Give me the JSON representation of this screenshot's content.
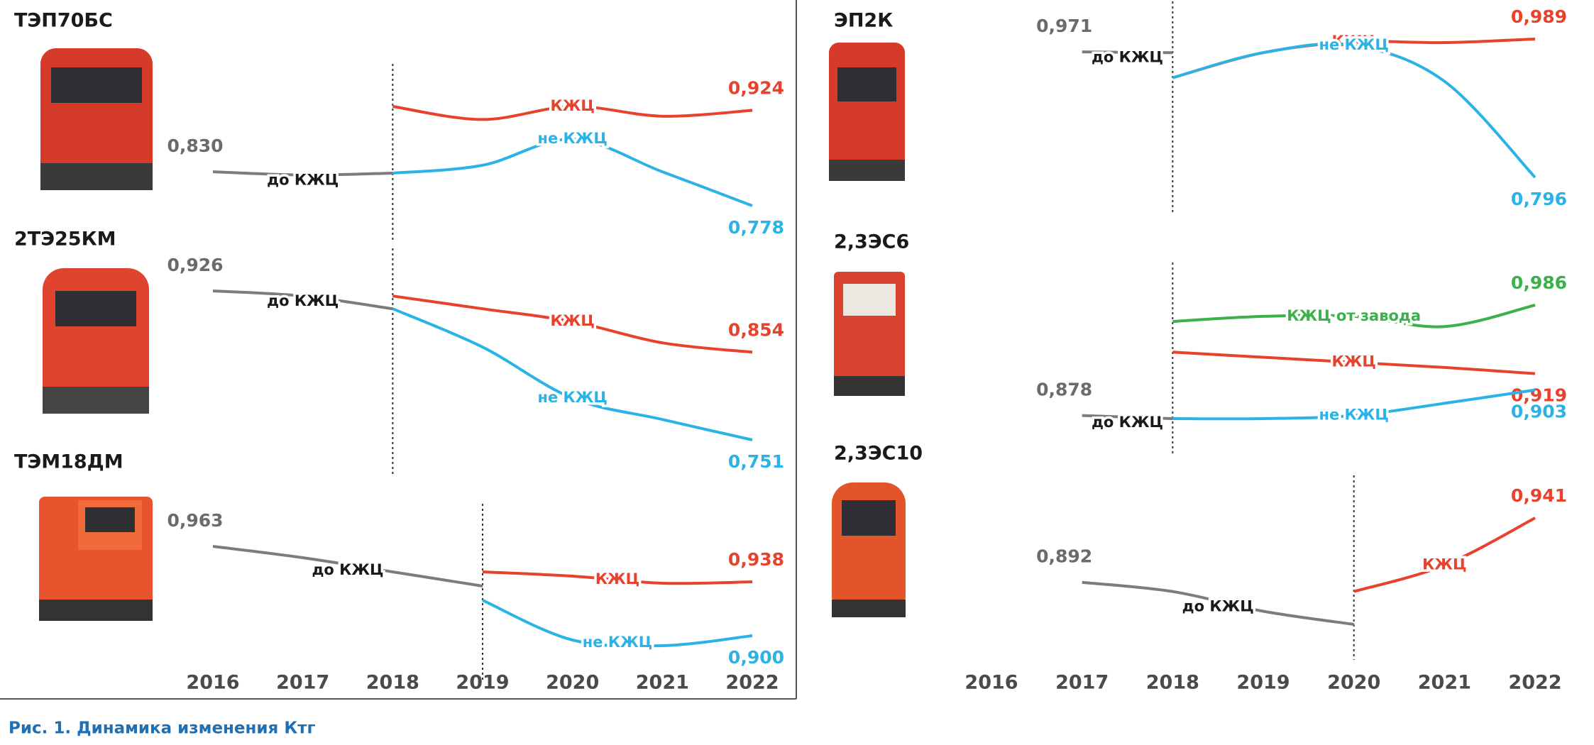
{
  "caption": "Рис. 1. Динамика изменения Ктг",
  "chart_data": [
    {
      "type": "line",
      "x": [
        2016,
        2017,
        2018,
        2019,
        2020,
        2021,
        2022
      ],
      "panels": [
        {
          "title": "ТЭП70БС",
          "series": [
            {
              "name": "до КЖЦ",
              "color": "#7d7a80",
              "values": [
                0.83,
                0.825,
                0.828,
                null,
                null,
                null,
                null
              ],
              "value_labels": [
                "0,830",
                null,
                null,
                null,
                null,
                null,
                null
              ]
            },
            {
              "name": "КЖЦ",
              "color": "#e8412c",
              "values": [
                null,
                null,
                0.93,
                0.91,
                0.93,
                0.915,
                0.924
              ],
              "value_labels": [
                null,
                null,
                null,
                null,
                null,
                null,
                "0,924"
              ]
            },
            {
              "name": "не КЖЦ",
              "color": "#2bb3e6",
              "values": [
                null,
                null,
                0.828,
                0.84,
                0.88,
                0.83,
                0.778
              ],
              "value_labels": [
                null,
                null,
                null,
                null,
                null,
                null,
                "0,778"
              ]
            }
          ]
        },
        {
          "title": "2ТЭ25КМ",
          "series": [
            {
              "name": "до КЖЦ",
              "color": "#7d7a80",
              "values": [
                0.926,
                0.92,
                0.905,
                null,
                null,
                null,
                null
              ],
              "value_labels": [
                "0,926",
                null,
                null,
                null,
                null,
                null,
                null
              ]
            },
            {
              "name": "КЖЦ",
              "color": "#e8412c",
              "values": [
                null,
                null,
                0.92,
                0.905,
                0.89,
                0.865,
                0.854
              ],
              "value_labels": [
                null,
                null,
                null,
                null,
                null,
                null,
                "0,854"
              ]
            },
            {
              "name": "не КЖЦ",
              "color": "#2bb3e6",
              "values": [
                null,
                null,
                0.905,
                0.86,
                0.8,
                0.775,
                0.751
              ],
              "value_labels": [
                null,
                null,
                null,
                null,
                null,
                null,
                "0,751"
              ]
            }
          ]
        },
        {
          "title": "ТЭМ18ДМ",
          "series": [
            {
              "name": "до КЖЦ",
              "color": "#7d7a80",
              "values": [
                0.963,
                0.955,
                0.945,
                0.935,
                null,
                null,
                null
              ],
              "value_labels": [
                "0,963",
                null,
                null,
                null,
                null,
                null,
                null
              ]
            },
            {
              "name": "КЖЦ",
              "color": "#e8412c",
              "values": [
                null,
                null,
                null,
                0.945,
                0.942,
                0.937,
                0.938
              ],
              "value_labels": [
                null,
                null,
                null,
                null,
                null,
                null,
                "0,938"
              ]
            },
            {
              "name": "не КЖЦ",
              "color": "#2bb3e6",
              "values": [
                null,
                null,
                null,
                0.925,
                0.897,
                0.893,
                0.9
              ],
              "value_labels": [
                null,
                null,
                null,
                null,
                null,
                null,
                "0,900"
              ]
            }
          ]
        }
      ]
    },
    {
      "type": "line",
      "x": [
        2016,
        2017,
        2018,
        2019,
        2020,
        2021,
        2022
      ],
      "panels": [
        {
          "title": "ЭП2К",
          "series": [
            {
              "name": "до КЖЦ",
              "color": "#7d7a80",
              "values": [
                null,
                0.971,
                0.97,
                null,
                null,
                null,
                null
              ],
              "value_labels": [
                null,
                "0,971",
                null,
                null,
                null,
                null,
                null
              ]
            },
            {
              "name": "КЖЦ",
              "color": "#e8412c",
              "values": [
                null,
                null,
                0.935,
                0.97,
                0.985,
                0.984,
                0.989
              ],
              "value_labels": [
                null,
                null,
                null,
                null,
                null,
                null,
                "0,989"
              ]
            },
            {
              "name": "не КЖЦ",
              "color": "#2bb3e6",
              "values": [
                null,
                null,
                0.935,
                0.97,
                0.98,
                0.93,
                0.796
              ],
              "value_labels": [
                null,
                null,
                null,
                null,
                null,
                null,
                "0,796"
              ]
            }
          ]
        },
        {
          "title": "2,3ЭС6",
          "series": [
            {
              "name": "до КЖЦ",
              "color": "#7d7a80",
              "values": [
                null,
                0.878,
                0.875,
                null,
                null,
                null,
                null
              ],
              "value_labels": [
                null,
                "0,878",
                null,
                null,
                null,
                null,
                null
              ]
            },
            {
              "name": "КЖЦ от завода",
              "color": "#3cb04a",
              "values": [
                null,
                null,
                0.97,
                0.975,
                0.975,
                0.965,
                0.986
              ],
              "value_labels": [
                null,
                null,
                null,
                null,
                null,
                null,
                "0,986"
              ]
            },
            {
              "name": "КЖЦ",
              "color": "#e8412c",
              "values": [
                null,
                null,
                0.94,
                0.935,
                0.93,
                0.925,
                0.919
              ],
              "value_labels": [
                null,
                null,
                null,
                null,
                null,
                null,
                "0,919"
              ]
            },
            {
              "name": "не КЖЦ",
              "color": "#2bb3e6",
              "values": [
                null,
                null,
                0.875,
                0.875,
                0.878,
                0.89,
                0.903
              ],
              "value_labels": [
                null,
                null,
                null,
                null,
                null,
                null,
                "0,903"
              ]
            }
          ]
        },
        {
          "title": "2,3ЭС10",
          "series": [
            {
              "name": "до КЖЦ",
              "color": "#7d7a80",
              "values": [
                null,
                0.892,
                0.885,
                0.87,
                0.86,
                null,
                null
              ],
              "value_labels": [
                null,
                "0,892",
                null,
                null,
                null,
                null,
                null
              ]
            },
            {
              "name": "КЖЦ",
              "color": "#e8412c",
              "values": [
                null,
                null,
                null,
                null,
                0.885,
                0.905,
                0.941
              ],
              "value_labels": [
                null,
                null,
                null,
                null,
                null,
                null,
                "0,941"
              ]
            }
          ]
        }
      ]
    }
  ]
}
